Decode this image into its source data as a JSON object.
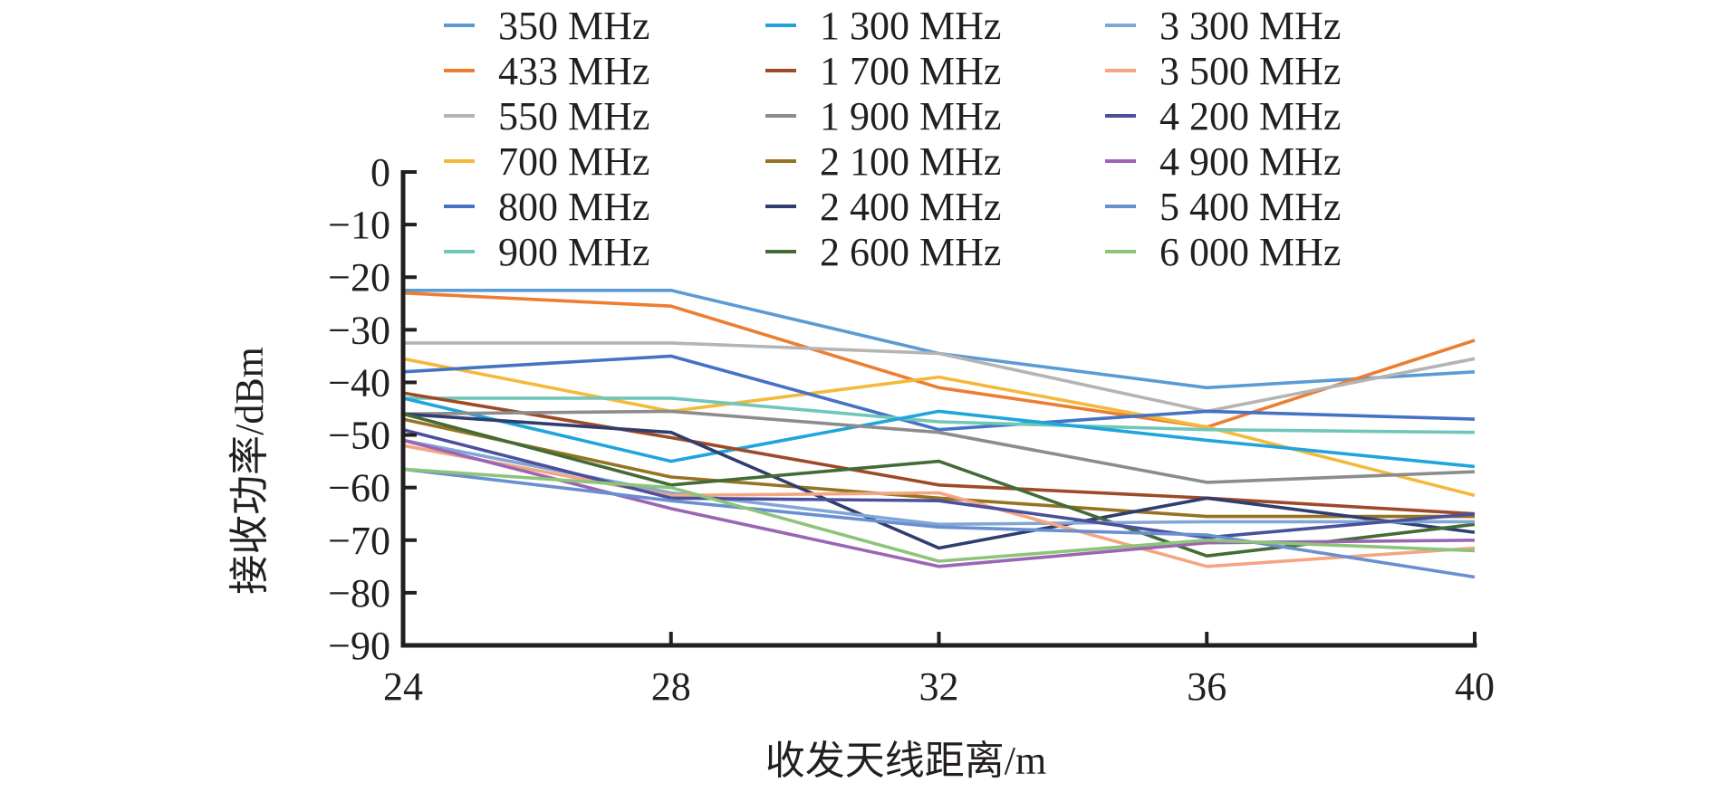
{
  "chart_data": {
    "type": "line",
    "xlabel": "收发天线距离/m",
    "ylabel": "接收功率/dBm",
    "x": [
      24,
      28,
      32,
      36,
      40
    ],
    "x_ticks": [
      "24",
      "28",
      "32",
      "36",
      "40"
    ],
    "y_ticks": [
      "0",
      "−10",
      "−20",
      "−30",
      "−40",
      "−50",
      "−60",
      "−70",
      "−80",
      "−90"
    ],
    "xlim": [
      24,
      40
    ],
    "ylim": [
      -90,
      0
    ],
    "grid": false,
    "legend_position": "top",
    "series": [
      {
        "name": "350 MHz",
        "color": "#5b9bd5",
        "values": [
          -22.5,
          -22.5,
          -34.5,
          -41,
          -38
        ]
      },
      {
        "name": "433 MHz",
        "color": "#ed7d31",
        "values": [
          -23,
          -25.5,
          -41,
          -48.5,
          -32
        ]
      },
      {
        "name": "550 MHz",
        "color": "#b4b4b4",
        "values": [
          -32.5,
          -32.5,
          -34.5,
          -45.5,
          -35.5
        ]
      },
      {
        "name": "700 MHz",
        "color": "#f4b93a",
        "values": [
          -35.5,
          -45.5,
          -39,
          -48.5,
          -61.5
        ]
      },
      {
        "name": "800 MHz",
        "color": "#4472c4",
        "values": [
          -38,
          -35,
          -49,
          -45.5,
          -47
        ]
      },
      {
        "name": "900 MHz",
        "color": "#70c6b8",
        "values": [
          -43,
          -43,
          -47.5,
          -49,
          -49.5
        ]
      },
      {
        "name": "1 300 MHz",
        "color": "#1fa5dc",
        "values": [
          -43,
          -55,
          -45.5,
          -51,
          -56
        ]
      },
      {
        "name": "1 700 MHz",
        "color": "#9e4a28",
        "values": [
          -42,
          -50.5,
          -59.5,
          -62,
          -65
        ]
      },
      {
        "name": "1 900 MHz",
        "color": "#8c8c8c",
        "values": [
          -46,
          -45.5,
          -49.5,
          -59,
          -57
        ]
      },
      {
        "name": "2 100 MHz",
        "color": "#967322",
        "values": [
          -47,
          -58,
          -62,
          -65.5,
          -65.5
        ]
      },
      {
        "name": "2 400 MHz",
        "color": "#2f3e6e",
        "values": [
          -46,
          -49.5,
          -71.5,
          -62,
          -68.5
        ]
      },
      {
        "name": "2 600 MHz",
        "color": "#436b36",
        "values": [
          -46,
          -59.5,
          -55,
          -73,
          -67
        ]
      },
      {
        "name": "3 300 MHz",
        "color": "#7fa7d6",
        "values": [
          -51,
          -61,
          -67,
          -66.5,
          -66.5
        ]
      },
      {
        "name": "3 500 MHz",
        "color": "#f4a582",
        "values": [
          -52,
          -61.5,
          -61,
          -75,
          -71.5
        ]
      },
      {
        "name": "4 200 MHz",
        "color": "#4b4f9c",
        "values": [
          -49,
          -62,
          -62.5,
          -69.5,
          -65
        ]
      },
      {
        "name": "4 900 MHz",
        "color": "#9b65b4",
        "values": [
          -51,
          -64,
          -75,
          -70.5,
          -70
        ]
      },
      {
        "name": "5 400 MHz",
        "color": "#6a8fd0",
        "values": [
          -56.5,
          -62.5,
          -67.5,
          -69,
          -77
        ]
      },
      {
        "name": "6 000 MHz",
        "color": "#8cc47a",
        "values": [
          -56.5,
          -60,
          -74,
          -70,
          -72
        ]
      }
    ]
  }
}
